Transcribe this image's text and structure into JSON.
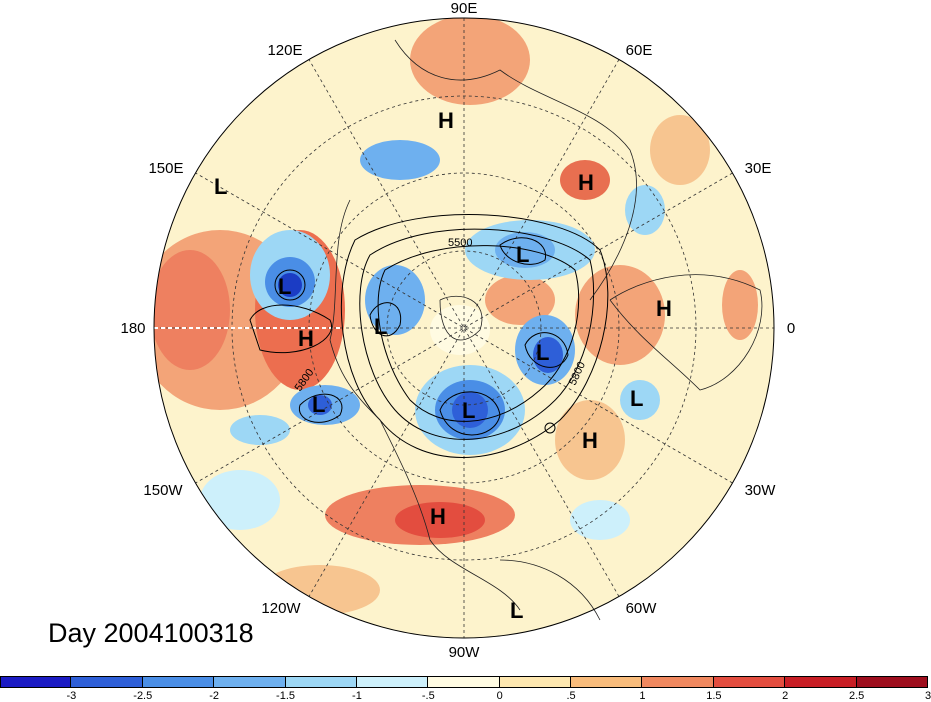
{
  "title": "Day 2004100318",
  "lon_labels": [
    {
      "id": "lon-90e",
      "text": "90E"
    },
    {
      "id": "lon-60e",
      "text": "60E"
    },
    {
      "id": "lon-30e",
      "text": "30E"
    },
    {
      "id": "lon-0",
      "text": "0"
    },
    {
      "id": "lon-30w",
      "text": "30W"
    },
    {
      "id": "lon-60w",
      "text": "60W"
    },
    {
      "id": "lon-90w",
      "text": "90W"
    },
    {
      "id": "lon-120w",
      "text": "120W"
    },
    {
      "id": "lon-150w",
      "text": "150W"
    },
    {
      "id": "lon-180",
      "text": "180"
    },
    {
      "id": "lon-150e",
      "text": "150E"
    },
    {
      "id": "lon-120e",
      "text": "120E"
    }
  ],
  "pressure_centers": [
    "H",
    "L"
  ],
  "contour_labels": [
    "5500",
    "5800",
    "5800"
  ],
  "colorbar": {
    "colors": [
      "#1b1bc4",
      "#2e5fd8",
      "#4a8ee6",
      "#6eb0ef",
      "#9dd7f5",
      "#cdf0fb",
      "#fffbe2",
      "#fde7b0",
      "#f8bc7c",
      "#f0885f",
      "#e34d3f",
      "#c81e25",
      "#9e0e1e"
    ],
    "ticks": [
      "-3",
      "-2.5",
      "-2",
      "-1.5",
      "-1",
      "-.5",
      "0",
      ".5",
      "1",
      "1.5",
      "2",
      "2.5",
      "3"
    ]
  }
}
